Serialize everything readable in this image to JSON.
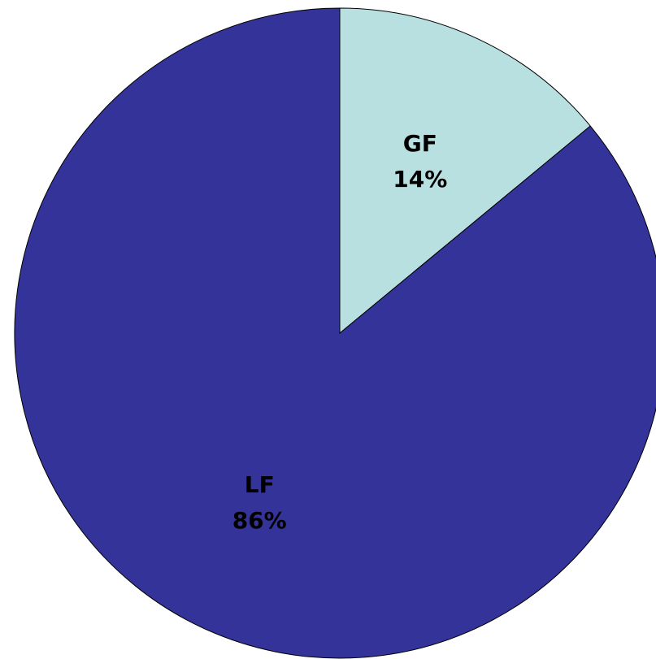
{
  "chart_data": {
    "type": "pie",
    "categories": [
      "GF",
      "LF"
    ],
    "values": [
      14,
      86
    ],
    "value_labels": [
      "14%",
      "86%"
    ],
    "colors": [
      "#b8e0e0",
      "#333399"
    ]
  }
}
